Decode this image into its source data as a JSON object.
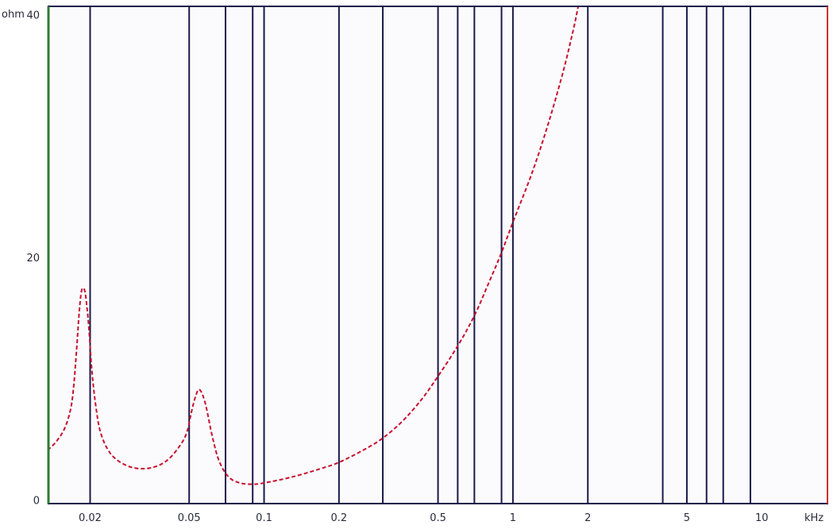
{
  "chart_data": {
    "type": "line",
    "title": "",
    "xlabel": "kHz",
    "ylabel": "ohm",
    "x_scale": "log",
    "xlim": [
      0.0135,
      18.5
    ],
    "ylim": [
      -0.3,
      40.7
    ],
    "grid": true,
    "legend": "none",
    "x_ticks": [
      {
        "value": 0.02,
        "label": "0.02"
      },
      {
        "value": 0.05,
        "label": "0.05"
      },
      {
        "value": 0.1,
        "label": "0.1"
      },
      {
        "value": 0.2,
        "label": "0.2"
      },
      {
        "value": 0.5,
        "label": "0.5"
      },
      {
        "value": 1,
        "label": "1"
      },
      {
        "value": 2,
        "label": "2"
      },
      {
        "value": 5,
        "label": "5"
      },
      {
        "value": 10,
        "label": "10"
      }
    ],
    "y_ticks": [
      {
        "value": 0,
        "label": "0"
      },
      {
        "value": 20,
        "label": "20"
      },
      {
        "value": 40,
        "label": "40"
      }
    ],
    "vertical_gridlines": [
      0.02,
      0.05,
      0.07,
      0.09,
      0.1,
      0.2,
      0.3,
      0.5,
      0.6,
      0.7,
      0.9,
      1,
      2,
      4,
      5,
      6,
      7,
      9
    ],
    "series": [
      {
        "color": "#c8102e",
        "style": "dashed",
        "points": [
          [
            0.0135,
            4.1
          ],
          [
            0.0146,
            4.8
          ],
          [
            0.0158,
            5.9
          ],
          [
            0.0167,
            7.5
          ],
          [
            0.0172,
            9.5
          ],
          [
            0.0177,
            12.8
          ],
          [
            0.0181,
            15.6
          ],
          [
            0.0185,
            17.3
          ],
          [
            0.019,
            17.3
          ],
          [
            0.0194,
            16.0
          ],
          [
            0.0198,
            14.0
          ],
          [
            0.0203,
            10.8
          ],
          [
            0.021,
            8.0
          ],
          [
            0.022,
            5.6
          ],
          [
            0.024,
            3.9
          ],
          [
            0.027,
            3.0
          ],
          [
            0.031,
            2.6
          ],
          [
            0.036,
            2.7
          ],
          [
            0.041,
            3.3
          ],
          [
            0.046,
            4.5
          ],
          [
            0.049,
            5.6
          ],
          [
            0.051,
            7.2
          ],
          [
            0.053,
            8.5
          ],
          [
            0.055,
            9.1
          ],
          [
            0.058,
            8.0
          ],
          [
            0.062,
            5.2
          ],
          [
            0.066,
            3.2
          ],
          [
            0.072,
            1.9
          ],
          [
            0.08,
            1.4
          ],
          [
            0.09,
            1.3
          ],
          [
            0.1,
            1.4
          ],
          [
            0.13,
            1.9
          ],
          [
            0.17,
            2.6
          ],
          [
            0.2,
            3.1
          ],
          [
            0.25,
            4.1
          ],
          [
            0.3,
            5.1
          ],
          [
            0.36,
            6.5
          ],
          [
            0.43,
            8.3
          ],
          [
            0.5,
            10.2
          ],
          [
            0.6,
            12.7
          ],
          [
            0.7,
            15.2
          ],
          [
            0.8,
            17.9
          ],
          [
            0.9,
            20.4
          ],
          [
            1.0,
            22.9
          ],
          [
            1.2,
            27.1
          ],
          [
            1.4,
            31.3
          ],
          [
            1.6,
            35.5
          ],
          [
            1.75,
            38.8
          ],
          [
            1.83,
            40.7
          ]
        ]
      }
    ]
  }
}
